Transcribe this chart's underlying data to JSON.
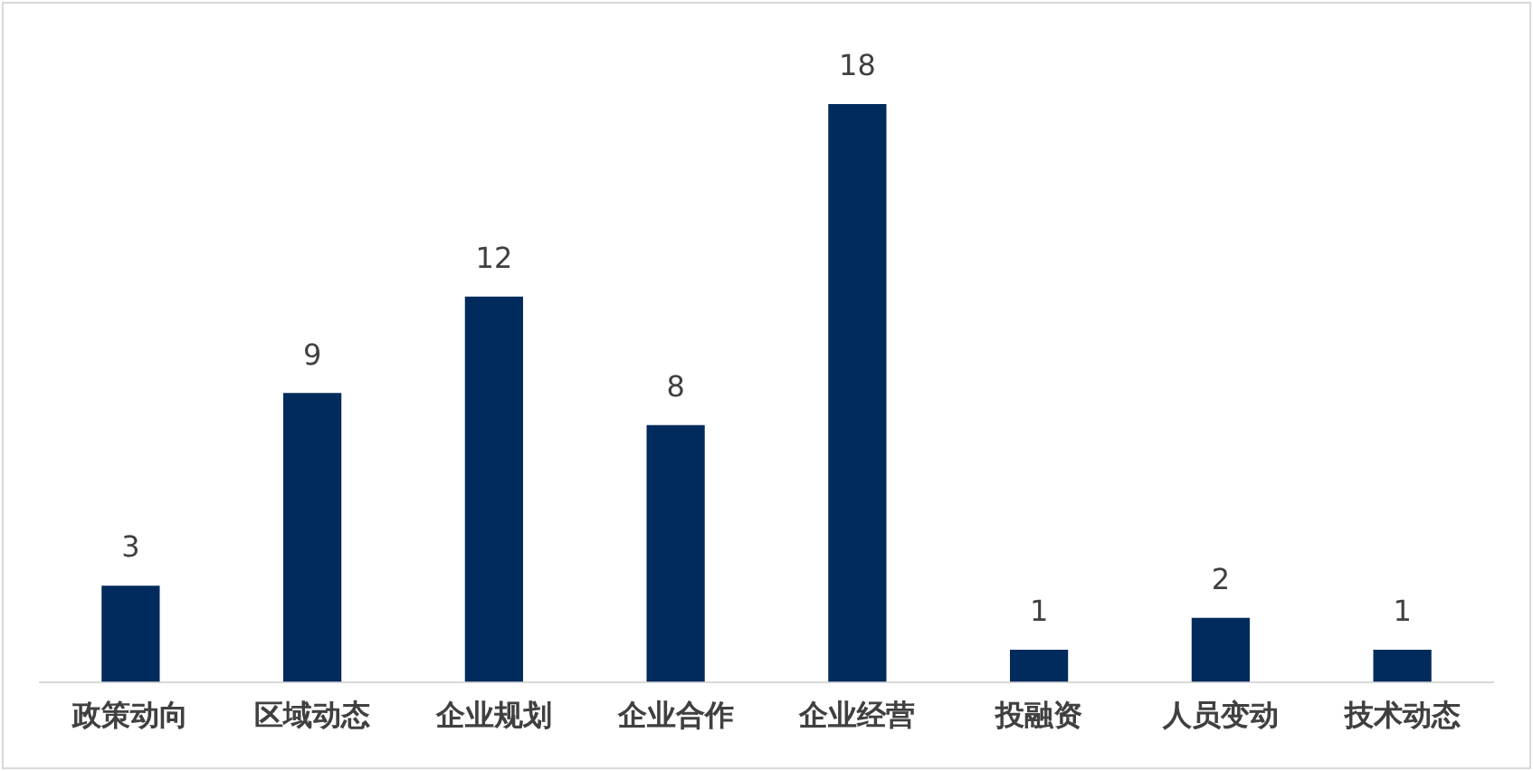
{
  "chart_data": {
    "type": "bar",
    "categories": [
      "政策动向",
      "区域动态",
      "企业规划",
      "企业合作",
      "企业经营",
      "投融资",
      "人员变动",
      "技术动态"
    ],
    "values": [
      3,
      9,
      12,
      8,
      18,
      1,
      2,
      1
    ],
    "color": "#002b5c",
    "data_labels": true,
    "grid": false,
    "legend": false,
    "tick_labels": "x"
  }
}
